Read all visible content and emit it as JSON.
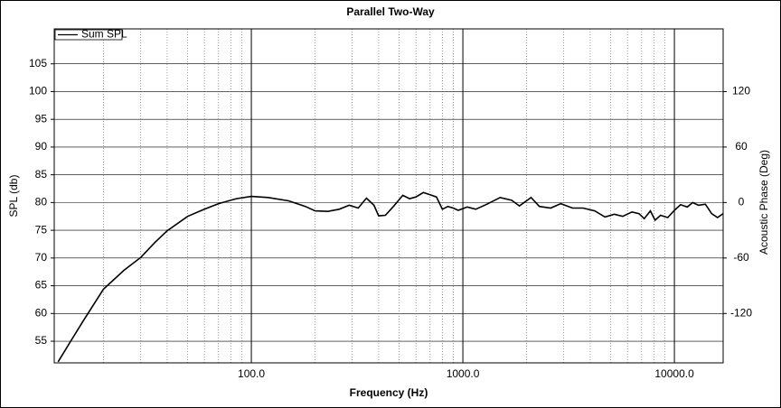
{
  "chart_data": {
    "type": "line",
    "title": "Parallel Two-Way",
    "x_label": "Frequency (Hz)",
    "y_label": "SPL (db)",
    "y2_label": "Acoustic Phase (Deg)",
    "x_log": true,
    "grid": true,
    "legend": "upper left",
    "x": [
      12.2,
      14,
      16,
      20,
      25,
      30,
      35,
      40,
      50,
      60,
      70,
      85,
      100,
      120,
      150,
      180,
      200,
      230,
      260,
      290,
      320,
      350,
      380,
      400,
      430,
      470,
      520,
      560,
      600,
      650,
      700,
      750,
      800,
      850,
      900,
      950,
      1050,
      1150,
      1300,
      1500,
      1700,
      1850,
      2100,
      2300,
      2600,
      2900,
      3300,
      3700,
      4200,
      4700,
      5200,
      5700,
      6300,
      6800,
      7200,
      7700,
      8100,
      8600,
      9300,
      10000,
      10700,
      11500,
      12200,
      13000,
      14000,
      15000,
      16000,
      17000
    ],
    "series": [
      {
        "name": "Sum SPL",
        "color": "#000000",
        "values": [
          51.3,
          55,
          58.6,
          64.4,
          67.8,
          70.1,
          72.8,
          74.9,
          77.5,
          78.8,
          79.8,
          80.7,
          81.1,
          80.9,
          80.3,
          79.3,
          78.5,
          78.4,
          78.8,
          79.5,
          79.0,
          80.8,
          79.5,
          77.6,
          77.7,
          79.3,
          81.3,
          80.7,
          81.0,
          81.8,
          81.4,
          81.0,
          78.8,
          79.3,
          79.0,
          78.6,
          79.2,
          78.8,
          79.7,
          80.9,
          80.4,
          79.4,
          80.9,
          79.3,
          79.0,
          79.8,
          79.0,
          79.0,
          78.5,
          77.4,
          77.9,
          77.5,
          78.3,
          78.0,
          77.1,
          78.5,
          76.8,
          77.7,
          77.3,
          78.6,
          79.6,
          79.2,
          80.0,
          79.5,
          79.7,
          78.0,
          77.3,
          78.0
        ]
      }
    ],
    "xlim": [
      11.7,
      17000
    ],
    "xticks": [
      {
        "value": 100,
        "label": "100.0"
      },
      {
        "value": 1000,
        "label": "1000.0"
      },
      {
        "value": 10000,
        "label": "10000.0"
      }
    ],
    "xminorticks": [
      20,
      30,
      40,
      50,
      60,
      70,
      80,
      90,
      200,
      300,
      400,
      500,
      600,
      700,
      800,
      900,
      2000,
      3000,
      4000,
      5000,
      6000,
      7000,
      8000,
      9000
    ],
    "ylim": [
      51.1,
      111.3
    ],
    "yticks": [
      55,
      60,
      65,
      70,
      75,
      80,
      85,
      90,
      95,
      100,
      105
    ],
    "y2lim": [
      -173.4,
      187.8
    ],
    "y2ticks": [
      -120,
      -60,
      0,
      60,
      120
    ]
  }
}
